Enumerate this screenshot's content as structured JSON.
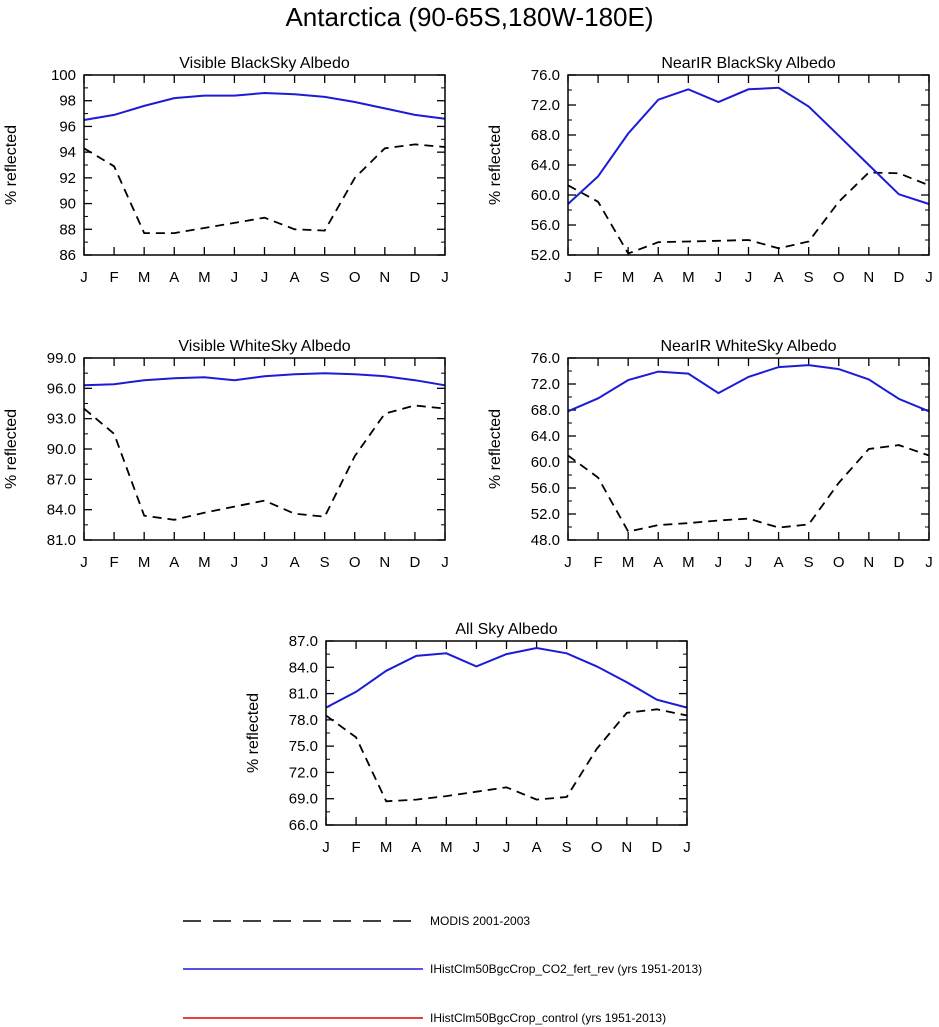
{
  "title": "Antarctica (90-65S,180W-180E)",
  "colors": {
    "modis": "#000000",
    "co2_fert_rev": "#1c1cd6",
    "control": "#e00000"
  },
  "legend": [
    {
      "label": "MODIS 2001-2003",
      "style": "dashed",
      "color": "#000000"
    },
    {
      "label": "IHistClm50BgcCrop_CO2_fert_rev (yrs 1951-2013)",
      "style": "solid",
      "color": "#1c1cd6"
    },
    {
      "label": "IHistClm50BgcCrop_control (yrs 1951-2013)",
      "style": "solid",
      "color": "#e00000"
    }
  ],
  "chart_data": [
    {
      "type": "line",
      "title": "Visible BlackSky Albedo",
      "ylabel": "% reflected",
      "categories": [
        "J",
        "F",
        "M",
        "A",
        "M",
        "J",
        "J",
        "A",
        "S",
        "O",
        "N",
        "D",
        "J"
      ],
      "ylim": [
        86,
        100
      ],
      "yticks": [
        "86",
        "88",
        "90",
        "92",
        "94",
        "96",
        "98",
        "100"
      ],
      "series": [
        {
          "key": "modis",
          "style": "dashed",
          "values": [
            94.3,
            92.9,
            87.7,
            87.7,
            88.1,
            88.5,
            88.9,
            88.0,
            87.9,
            92.0,
            94.3,
            94.6,
            94.4
          ]
        },
        {
          "key": "co2_fert_rev",
          "style": "solid",
          "values": [
            96.5,
            96.9,
            97.6,
            98.2,
            98.4,
            98.4,
            98.6,
            98.5,
            98.3,
            97.9,
            97.4,
            96.9,
            96.6
          ]
        }
      ]
    },
    {
      "type": "line",
      "title": "NearIR BlackSky Albedo",
      "ylabel": "% reflected",
      "categories": [
        "J",
        "F",
        "M",
        "A",
        "M",
        "J",
        "J",
        "A",
        "S",
        "O",
        "N",
        "D",
        "J"
      ],
      "ylim": [
        52,
        76
      ],
      "yticks": [
        "52.0",
        "56.0",
        "60.0",
        "64.0",
        "68.0",
        "72.0",
        "76.0"
      ],
      "series": [
        {
          "key": "modis",
          "style": "dashed",
          "values": [
            61.3,
            59.1,
            52.2,
            53.7,
            53.8,
            53.9,
            54.0,
            52.9,
            53.8,
            59.1,
            63.0,
            62.9,
            61.3
          ]
        },
        {
          "key": "co2_fert_rev",
          "style": "solid",
          "values": [
            58.8,
            62.5,
            68.2,
            72.7,
            74.1,
            72.4,
            74.1,
            74.3,
            71.8,
            67.9,
            64.0,
            60.1,
            58.8
          ]
        }
      ]
    },
    {
      "type": "line",
      "title": "Visible WhiteSky Albedo",
      "ylabel": "% reflected",
      "categories": [
        "J",
        "F",
        "M",
        "A",
        "M",
        "J",
        "J",
        "A",
        "S",
        "O",
        "N",
        "D",
        "J"
      ],
      "ylim": [
        81,
        99
      ],
      "yticks": [
        "81.0",
        "84.0",
        "87.0",
        "90.0",
        "93.0",
        "96.0",
        "99.0"
      ],
      "series": [
        {
          "key": "modis",
          "style": "dashed",
          "values": [
            94.0,
            91.5,
            83.4,
            83.0,
            83.7,
            84.3,
            84.9,
            83.6,
            83.3,
            89.3,
            93.5,
            94.3,
            94.0
          ]
        },
        {
          "key": "co2_fert_rev",
          "style": "solid",
          "values": [
            96.3,
            96.4,
            96.8,
            97.0,
            97.1,
            96.8,
            97.2,
            97.4,
            97.5,
            97.4,
            97.2,
            96.8,
            96.3
          ]
        }
      ]
    },
    {
      "type": "line",
      "title": "NearIR WhiteSky Albedo",
      "ylabel": "% reflected",
      "categories": [
        "J",
        "F",
        "M",
        "A",
        "M",
        "J",
        "J",
        "A",
        "S",
        "O",
        "N",
        "D",
        "J"
      ],
      "ylim": [
        48,
        76
      ],
      "yticks": [
        "48.0",
        "52.0",
        "56.0",
        "60.0",
        "64.0",
        "68.0",
        "72.0",
        "76.0"
      ],
      "series": [
        {
          "key": "modis",
          "style": "dashed",
          "values": [
            61.0,
            57.6,
            49.3,
            50.3,
            50.6,
            51.0,
            51.3,
            49.9,
            50.4,
            56.8,
            62.0,
            62.6,
            61.0
          ]
        },
        {
          "key": "co2_fert_rev",
          "style": "solid",
          "values": [
            67.8,
            69.8,
            72.6,
            73.9,
            73.6,
            70.6,
            73.1,
            74.6,
            74.9,
            74.3,
            72.7,
            69.7,
            67.8
          ]
        }
      ]
    },
    {
      "type": "line",
      "title": "All Sky Albedo",
      "ylabel": "% reflected",
      "categories": [
        "J",
        "F",
        "M",
        "A",
        "M",
        "J",
        "J",
        "A",
        "S",
        "O",
        "N",
        "D",
        "J"
      ],
      "ylim": [
        66,
        87
      ],
      "yticks": [
        "66.0",
        "69.0",
        "72.0",
        "75.0",
        "78.0",
        "81.0",
        "84.0",
        "87.0"
      ],
      "series": [
        {
          "key": "modis",
          "style": "dashed",
          "values": [
            78.5,
            76.0,
            68.7,
            68.9,
            69.3,
            69.8,
            70.3,
            68.9,
            69.2,
            74.7,
            78.8,
            79.2,
            78.5
          ]
        },
        {
          "key": "co2_fert_rev",
          "style": "solid",
          "values": [
            79.4,
            81.2,
            83.6,
            85.3,
            85.6,
            84.1,
            85.5,
            86.2,
            85.6,
            84.1,
            82.3,
            80.3,
            79.4
          ]
        }
      ]
    }
  ]
}
